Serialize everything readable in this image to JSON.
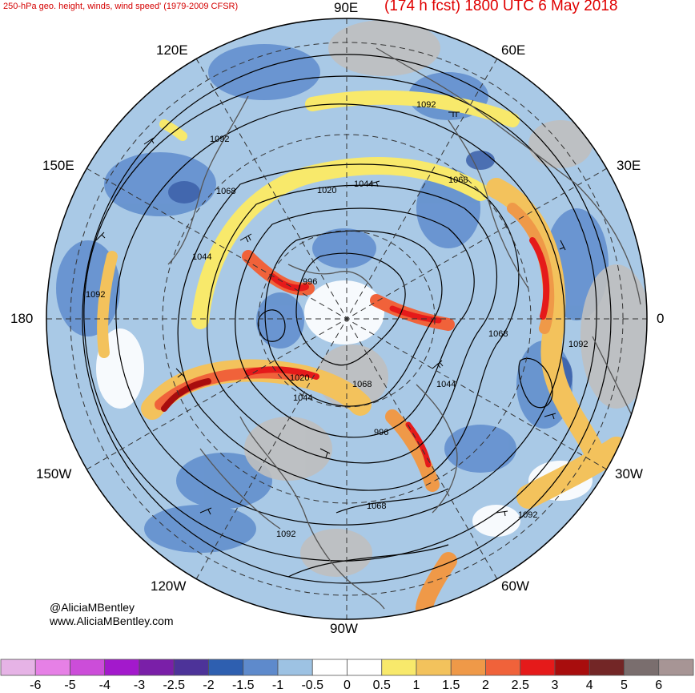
{
  "header": {
    "left_title": "250-hPa geo. height, winds, wind speed' (1979-2009 CFSR)",
    "right_title": "(174 h fcst) 1800 UTC 6 May 2018"
  },
  "longitude_labels": {
    "top": "90E",
    "top_left": "120E",
    "top_right": "60E",
    "upper_left": "150E",
    "upper_right": "30E",
    "left": "180",
    "right": "0",
    "lower_left": "150W",
    "lower_right": "30W",
    "bottom_left": "120W",
    "bottom_right": "60W",
    "bottom": "90W"
  },
  "contour_labels": [
    "1092",
    "1092",
    "1068",
    "1068",
    "1044",
    "1020",
    "1044",
    "996",
    "1092",
    "1068",
    "1092",
    "1020",
    "1044",
    "996",
    "1044",
    "1068",
    "1092",
    "1092",
    "1068"
  ],
  "credits": {
    "handle": "@AliciaMBentley",
    "website": "www.AliciaMBentley.com"
  },
  "colorbar": {
    "labels": [
      "-6",
      "-5",
      "-4",
      "-3",
      "-2.5",
      "-2",
      "-1.5",
      "-1",
      "-0.5",
      "0",
      "0.5",
      "1",
      "1.5",
      "2",
      "2.5",
      "3",
      "4",
      "5",
      "6"
    ],
    "colors": [
      "#e6b3e6",
      "#e680e6",
      "#cc4dd9",
      "#a319cc",
      "#7a1fa8",
      "#4d3399",
      "#2e5fb0",
      "#5e8acc",
      "#9dc2e3",
      "#ffffff",
      "#ffffff",
      "#f8e96b",
      "#f3c25c",
      "#ef9948",
      "#f0623a",
      "#e51a1a",
      "#a80d0d",
      "#732626",
      "#7a6e6e",
      "#a79595"
    ]
  }
}
